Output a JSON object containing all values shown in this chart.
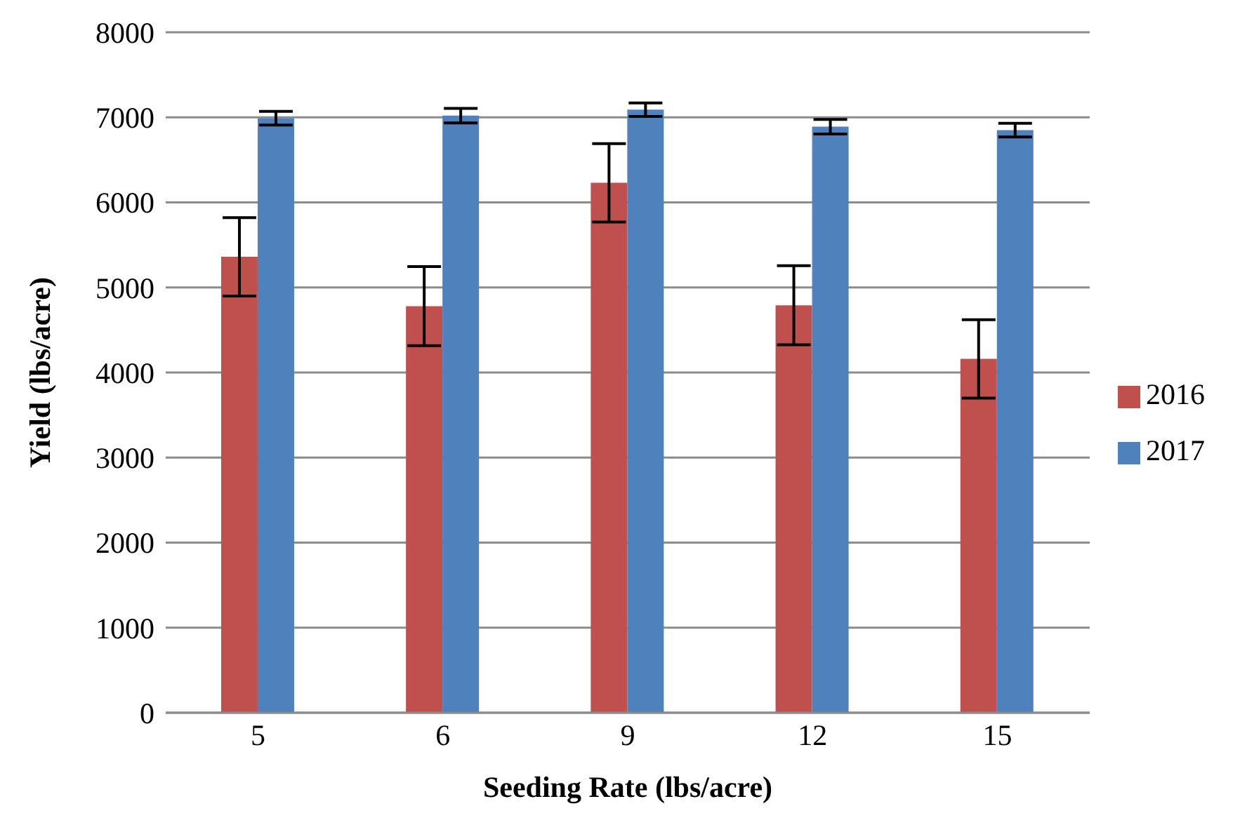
{
  "chart_data": {
    "type": "bar",
    "xlabel": "Seeding Rate (lbs/acre)",
    "ylabel": "Yield (lbs/acre)",
    "categories": [
      "5",
      "6",
      "9",
      "12",
      "15"
    ],
    "series": [
      {
        "name": "2016",
        "color": "#c0504d",
        "values": [
          5360,
          4780,
          6230,
          4790,
          4160
        ],
        "errors": [
          460,
          465,
          460,
          465,
          460
        ]
      },
      {
        "name": "2017",
        "color": "#4f81bd",
        "values": [
          6990,
          7020,
          7090,
          6890,
          6850
        ],
        "errors": [
          80,
          85,
          80,
          85,
          80
        ]
      }
    ],
    "ylim": [
      0,
      8000
    ],
    "yticks": [
      0,
      1000,
      2000,
      3000,
      4000,
      5000,
      6000,
      7000,
      8000
    ],
    "grid": "y",
    "legend": "right"
  }
}
